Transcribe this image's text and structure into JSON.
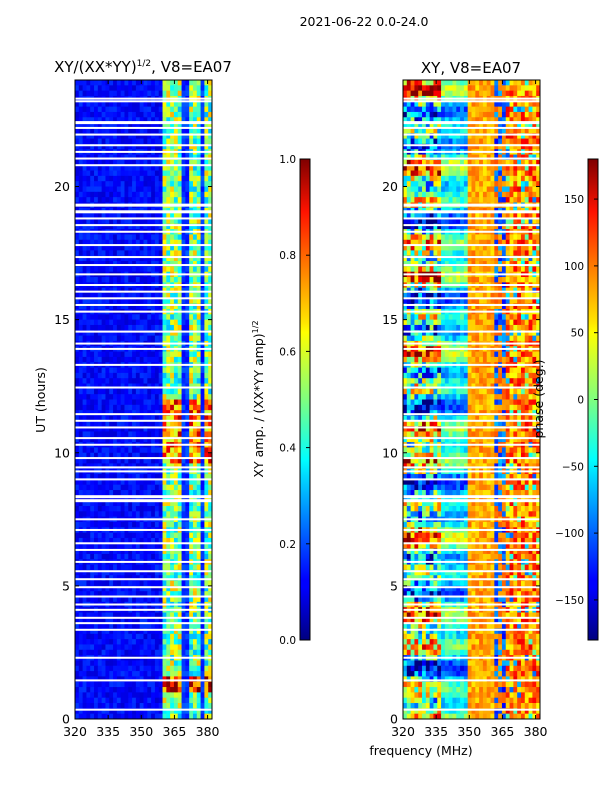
{
  "page_title": "2021-06-22 0.0-24.0",
  "chart_data": [
    {
      "type": "heatmap",
      "title_main": "XY/(XX*YY)",
      "title_exp": "1/2",
      "title_suffix": ", V8=EA07",
      "xlabel": "",
      "ylabel": "UT (hours)",
      "xlim": [
        320,
        382
      ],
      "ylim": [
        0,
        24
      ],
      "x_ticks": [
        320,
        335,
        350,
        365,
        380
      ],
      "y_ticks": [
        0,
        5,
        10,
        15,
        20
      ],
      "colorbar": {
        "label_main": "XY amp. / (XX*YY amp)",
        "label_exp": "1/2",
        "range": [
          0.0,
          1.0
        ],
        "ticks": [
          0.0,
          0.2,
          0.4,
          0.6,
          0.8,
          1.0
        ],
        "tick_labels": [
          "0.0",
          "0.2",
          "0.4",
          "0.6",
          "0.8",
          "1.0"
        ]
      },
      "colormap": "jet"
    },
    {
      "type": "heatmap",
      "title": "XY, V8=EA07",
      "xlabel": "frequency (MHz)",
      "ylabel": "",
      "xlim": [
        320,
        382
      ],
      "ylim": [
        0,
        24
      ],
      "x_ticks": [
        320,
        335,
        350,
        365,
        380
      ],
      "y_ticks": [
        0,
        5,
        10,
        15,
        20
      ],
      "colorbar": {
        "label": "phase (deg.)",
        "range": [
          -180,
          180
        ],
        "ticks": [
          150,
          100,
          50,
          0,
          -50,
          -100,
          -150
        ],
        "tick_labels": [
          "150",
          "100",
          "50",
          "0",
          "−50",
          "−100",
          "−150"
        ]
      },
      "colormap": "jet"
    }
  ],
  "flagged_hours": [
    0.35,
    1.45,
    2.3,
    3.35,
    3.6,
    3.8,
    4.1,
    4.3,
    4.6,
    4.95,
    5.25,
    5.55,
    5.9,
    6.35,
    6.6,
    7.1,
    7.5,
    8.2,
    8.35,
    9.0,
    9.3,
    9.45,
    9.8,
    10.3,
    10.55,
    10.95,
    11.2,
    11.45,
    12.45,
    13.3,
    13.9,
    14.1,
    14.55,
    15.3,
    15.55,
    15.8,
    16.05,
    16.3,
    16.7,
    17.05,
    17.35,
    17.8,
    18.3,
    18.55,
    18.8,
    19.05,
    19.3,
    20.8,
    21.05,
    21.3,
    21.55,
    21.95,
    22.2,
    22.4,
    23.2,
    23.3
  ]
}
